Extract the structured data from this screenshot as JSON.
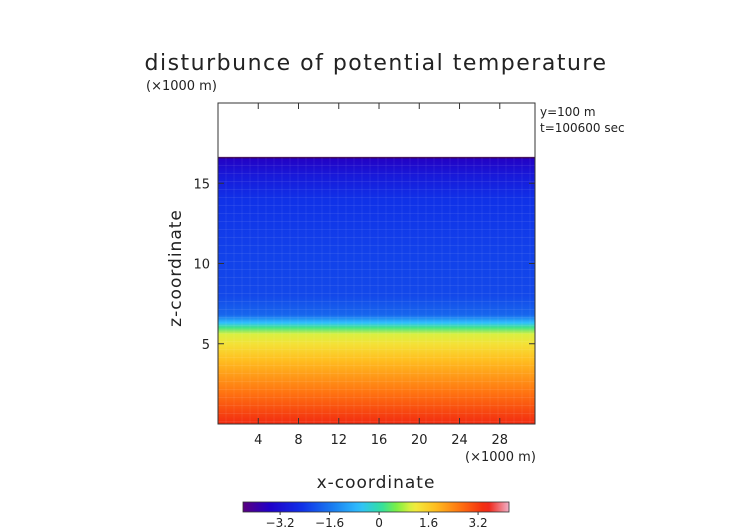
{
  "chart_data": {
    "type": "heatmap",
    "title": "disturbunce of potential temperature",
    "y_unit_label": "(×1000 m)",
    "x_unit_label": "(×1000 m)",
    "annotations": [
      "y=100  m",
      "t=100600 sec"
    ],
    "xlabel": "x-coordinate",
    "ylabel": "z-coordinate",
    "xlim": [
      0,
      31.5
    ],
    "ylim": [
      0,
      20
    ],
    "x_ticks": [
      4,
      8,
      12,
      16,
      20,
      24,
      28
    ],
    "y_ticks": [
      5,
      10,
      15
    ],
    "data_top_z": 16.6,
    "colorbar": {
      "min": -4.4,
      "max": 4.2,
      "ticks": [
        -3.2,
        -1.6,
        0,
        1.6,
        3.2
      ],
      "tick_labels": [
        "−3.2",
        "−1.6",
        "0",
        "1.6",
        "3.2"
      ]
    },
    "z_profile": [
      {
        "z": 0,
        "value": 3.4
      },
      {
        "z": 1,
        "value": 3.0
      },
      {
        "z": 2,
        "value": 2.6
      },
      {
        "z": 3,
        "value": 2.2
      },
      {
        "z": 4,
        "value": 1.8
      },
      {
        "z": 5,
        "value": 1.3
      },
      {
        "z": 5.6,
        "value": 1.0
      },
      {
        "z": 6.0,
        "value": 0.2
      },
      {
        "z": 6.3,
        "value": -0.6
      },
      {
        "z": 6.8,
        "value": -1.8
      },
      {
        "z": 8,
        "value": -2.2
      },
      {
        "z": 11,
        "value": -2.3
      },
      {
        "z": 14,
        "value": -2.5
      },
      {
        "z": 15.5,
        "value": -3.0
      },
      {
        "z": 16.6,
        "value": -3.6
      }
    ]
  }
}
